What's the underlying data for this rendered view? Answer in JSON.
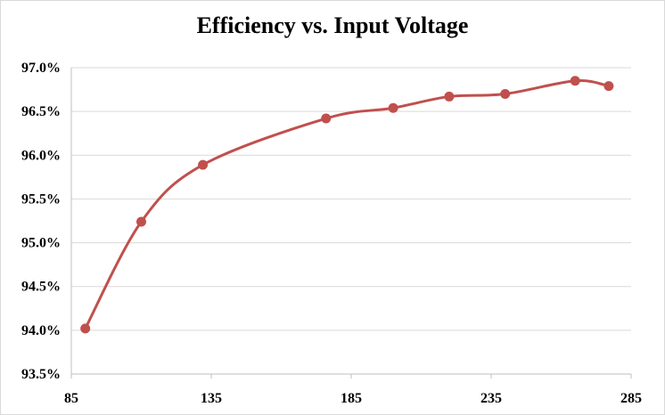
{
  "chart_data": {
    "type": "line",
    "title": "Efficiency vs. Input Voltage",
    "xlabel": "",
    "ylabel": "",
    "xlim": [
      85,
      285
    ],
    "ylim": [
      93.5,
      97.0
    ],
    "x_ticks": [
      85,
      135,
      185,
      235,
      285
    ],
    "y_ticks": [
      93.5,
      94.0,
      94.5,
      95.0,
      95.5,
      96.0,
      96.5,
      97.0
    ],
    "y_tick_labels": [
      "93.5%",
      "94.0%",
      "94.5%",
      "95.0%",
      "95.5%",
      "96.0%",
      "96.5%",
      "97.0%"
    ],
    "grid": true,
    "legend": "none",
    "series": [
      {
        "color": "#c0504d",
        "x": [
          90,
          110,
          132,
          176,
          200,
          220,
          240,
          265,
          277
        ],
        "y": [
          94.02,
          95.24,
          95.89,
          96.42,
          96.54,
          96.67,
          96.7,
          96.85,
          96.79
        ]
      }
    ]
  }
}
